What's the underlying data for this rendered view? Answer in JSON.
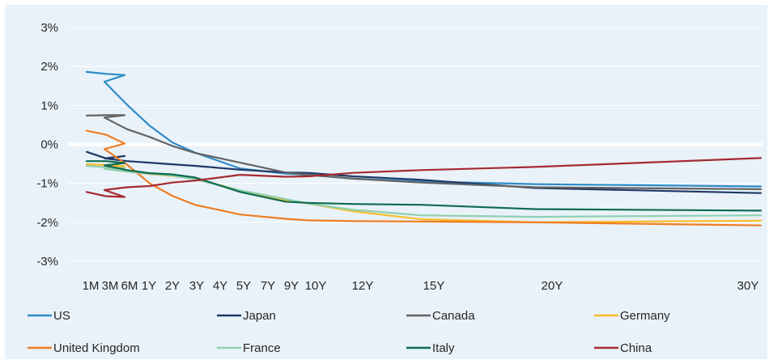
{
  "chart_data": {
    "type": "line",
    "title": "",
    "xlabel": "",
    "ylabel": "",
    "ylim": [
      -3,
      3
    ],
    "y_ticks": [
      -3,
      -2,
      -1,
      0,
      1,
      2,
      3
    ],
    "y_tick_labels": [
      "-3%",
      "-2%",
      "-1%",
      "0%",
      "1%",
      "2%",
      "3%"
    ],
    "x_maturity_years": [
      0.0833,
      0.25,
      0.5,
      1,
      2,
      3,
      4,
      5,
      7,
      9,
      10,
      12,
      15,
      20,
      30
    ],
    "categories": [
      "1M",
      "3M",
      "6M",
      "1Y",
      "2Y",
      "3Y",
      "4Y",
      "5Y",
      "7Y",
      "9Y",
      "10Y",
      "12Y",
      "15Y",
      "20Y",
      "30Y"
    ],
    "legend_position": "bottom",
    "grid": "horizontal",
    "series": [
      {
        "name": "US",
        "color": "#2e8bc9",
        "values": [
          1.86,
          1.81,
          1.78,
          1.61,
          1.02,
          0.48,
          0.05,
          -0.21,
          -0.62,
          -0.75,
          -0.78,
          -0.88,
          -0.95,
          -1.02,
          -1.08
        ]
      },
      {
        "name": "Japan",
        "color": "#1f3864",
        "values": [
          -0.19,
          -0.36,
          -0.3,
          -0.36,
          -0.43,
          -0.47,
          -0.51,
          -0.55,
          -0.65,
          -0.72,
          -0.73,
          -0.82,
          -0.91,
          -1.12,
          -1.25
        ]
      },
      {
        "name": "Canada",
        "color": "#636363",
        "values": [
          0.74,
          0.75,
          0.75,
          0.69,
          0.39,
          0.19,
          -0.04,
          -0.22,
          -0.47,
          -0.72,
          -0.78,
          -0.88,
          -0.98,
          -1.1,
          -1.15
        ]
      },
      {
        "name": "Germany",
        "color": "#f9bc2c",
        "values": [
          -0.51,
          -0.53,
          -0.56,
          -0.63,
          -0.7,
          -0.76,
          -0.81,
          -0.88,
          -1.18,
          -1.44,
          -1.52,
          -1.72,
          -1.92,
          -2.0,
          -1.96
        ]
      },
      {
        "name": "United Kingdom",
        "color": "#ee7d22",
        "values": [
          0.35,
          0.25,
          0.02,
          -0.12,
          -0.52,
          -1.0,
          -1.32,
          -1.55,
          -1.8,
          -1.91,
          -1.95,
          -1.97,
          -1.98,
          -2.0,
          -2.08
        ]
      },
      {
        "name": "France",
        "color": "#8fd0b0",
        "values": [
          -0.55,
          -0.59,
          -0.61,
          -0.63,
          -0.7,
          -0.75,
          -0.8,
          -0.9,
          -1.18,
          -1.4,
          -1.52,
          -1.68,
          -1.82,
          -1.86,
          -1.82
        ]
      },
      {
        "name": "Italy",
        "color": "#0e6b4f",
        "values": [
          -0.43,
          -0.43,
          -0.48,
          -0.54,
          -0.66,
          -0.74,
          -0.77,
          -0.85,
          -1.22,
          -1.47,
          -1.5,
          -1.53,
          -1.55,
          -1.66,
          -1.7
        ]
      },
      {
        "name": "China",
        "color": "#a52a2e",
        "values": [
          -1.22,
          -1.33,
          -1.35,
          -1.17,
          -1.1,
          -1.07,
          -0.98,
          -0.93,
          -0.78,
          -0.83,
          -0.82,
          -0.73,
          -0.66,
          -0.58,
          -0.35
        ]
      }
    ]
  }
}
